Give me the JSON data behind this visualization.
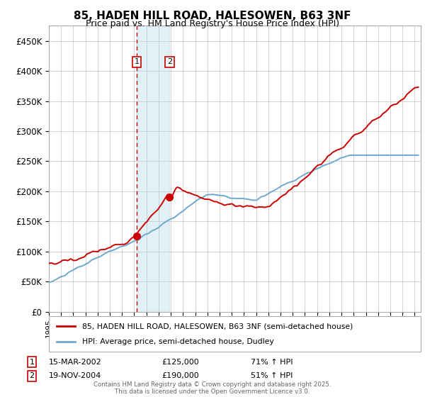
{
  "title": "85, HADEN HILL ROAD, HALESOWEN, B63 3NF",
  "subtitle": "Price paid vs. HM Land Registry's House Price Index (HPI)",
  "ylabel_ticks": [
    "£0",
    "£50K",
    "£100K",
    "£150K",
    "£200K",
    "£250K",
    "£300K",
    "£350K",
    "£400K",
    "£450K"
  ],
  "ytick_values": [
    0,
    50000,
    100000,
    150000,
    200000,
    250000,
    300000,
    350000,
    400000,
    450000
  ],
  "ylim": [
    0,
    475000
  ],
  "xlim_start": 1995.0,
  "xlim_end": 2025.5,
  "sale1_date": 2002.2,
  "sale1_price": 125000,
  "sale2_date": 2004.9,
  "sale2_price": 190000,
  "vline_color": "#cc0000",
  "shading_color": "#add8e6",
  "shading_alpha": 0.35,
  "red_line_color": "#cc0000",
  "blue_line_color": "#6fa8d0",
  "legend_red_label": "85, HADEN HILL ROAD, HALESOWEN, B63 3NF (semi-detached house)",
  "legend_blue_label": "HPI: Average price, semi-detached house, Dudley",
  "footer": "Contains HM Land Registry data © Crown copyright and database right 2025.\nThis data is licensed under the Open Government Licence v3.0.",
  "title_fontsize": 11,
  "subtitle_fontsize": 9,
  "background_color": "#ffffff",
  "grid_color": "#cccccc"
}
